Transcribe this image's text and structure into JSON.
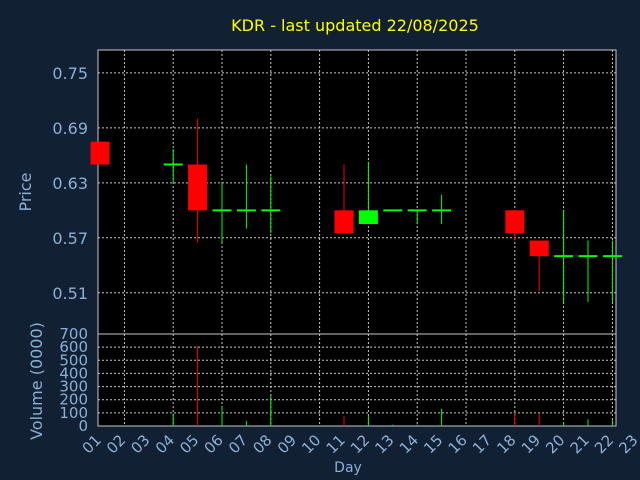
{
  "chart_data": {
    "type": "candlestick",
    "title": "KDR - last updated 22/08/2025",
    "xlabel": "Day",
    "price_panel": {
      "ylabel": "Price",
      "yticks": [
        "0.75",
        "0.69",
        "0.63",
        "0.57",
        "0.51"
      ],
      "ylim": [
        0.465,
        0.775
      ]
    },
    "volume_panel": {
      "ylabel": "Volume (0000)",
      "yticks": [
        "700",
        "600",
        "500",
        "400",
        "300",
        "200",
        "100",
        "0"
      ],
      "ylim": [
        0,
        700
      ]
    },
    "days": [
      "01",
      "02",
      "03",
      "04",
      "05",
      "06",
      "07",
      "08",
      "09",
      "10",
      "11",
      "12",
      "13",
      "14",
      "15",
      "16",
      "17",
      "18",
      "19",
      "20",
      "21",
      "22",
      "23"
    ],
    "candles": [
      {
        "day": "01",
        "open": 0.675,
        "close": 0.65,
        "high": 0.675,
        "low": 0.65,
        "volume": 0
      },
      {
        "day": "04",
        "open": 0.65,
        "close": 0.65,
        "high": 0.667,
        "low": 0.63,
        "volume": 95
      },
      {
        "day": "05",
        "open": 0.65,
        "close": 0.6,
        "high": 0.7,
        "low": 0.565,
        "volume": 610
      },
      {
        "day": "06",
        "open": 0.6,
        "close": 0.6,
        "high": 0.63,
        "low": 0.565,
        "volume": 145
      },
      {
        "day": "07",
        "open": 0.6,
        "close": 0.6,
        "high": 0.65,
        "low": 0.58,
        "volume": 40
      },
      {
        "day": "08",
        "open": 0.6,
        "close": 0.6,
        "high": 0.637,
        "low": 0.575,
        "volume": 230
      },
      {
        "day": "11",
        "open": 0.6,
        "close": 0.575,
        "high": 0.65,
        "low": 0.575,
        "volume": 75
      },
      {
        "day": "12",
        "open": 0.585,
        "close": 0.6,
        "high": 0.653,
        "low": 0.585,
        "volume": 80
      },
      {
        "day": "13",
        "open": 0.6,
        "close": 0.6,
        "high": 0.6,
        "low": 0.6,
        "volume": 10
      },
      {
        "day": "14",
        "open": 0.6,
        "close": 0.6,
        "high": 0.6,
        "low": 0.585,
        "volume": 10
      },
      {
        "day": "15",
        "open": 0.6,
        "close": 0.6,
        "high": 0.617,
        "low": 0.585,
        "volume": 130
      },
      {
        "day": "18",
        "open": 0.6,
        "close": 0.575,
        "high": 0.6,
        "low": 0.567,
        "volume": 90
      },
      {
        "day": "19",
        "open": 0.567,
        "close": 0.55,
        "high": 0.567,
        "low": 0.512,
        "volume": 95
      },
      {
        "day": "20",
        "open": 0.55,
        "close": 0.55,
        "high": 0.6,
        "low": 0.5,
        "volume": 30
      },
      {
        "day": "21",
        "open": 0.55,
        "close": 0.55,
        "high": 0.567,
        "low": 0.5,
        "volume": 50
      },
      {
        "day": "22",
        "open": 0.55,
        "close": 0.55,
        "high": 0.567,
        "low": 0.5,
        "volume": 45
      }
    ],
    "grid": true,
    "colors": {
      "background": "#112033",
      "plot_bg": "#000000",
      "grid": "#c8c8c8",
      "up": "#00ff00",
      "down": "#ff0000",
      "title": "#ffff00",
      "axis_text": "#8ab0d8"
    }
  }
}
